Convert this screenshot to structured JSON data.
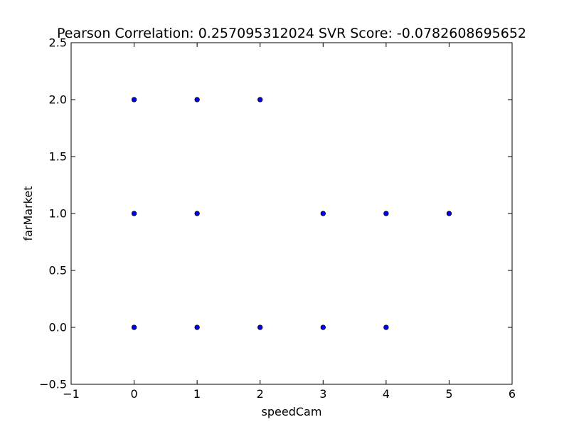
{
  "chart_data": {
    "type": "scatter",
    "title": "Pearson Correlation: 0.257095312024  SVR Score: -0.0782608695652",
    "xlabel": "speedCam",
    "ylabel": "farMarket",
    "xlim": [
      -1,
      6
    ],
    "ylim": [
      -0.5,
      2.5
    ],
    "xticks": [
      "−1",
      "0",
      "1",
      "2",
      "3",
      "4",
      "5",
      "6"
    ],
    "yticks": [
      "−0.5",
      "0.0",
      "0.5",
      "1.0",
      "1.5",
      "2.0",
      "2.5"
    ],
    "grid": false,
    "legend": "none",
    "marker_color": "#0000ff",
    "series": [
      {
        "x": [
          0,
          1,
          2,
          0,
          1,
          3,
          4,
          5,
          0,
          1,
          2,
          3,
          4
        ],
        "y": [
          2,
          2,
          2,
          1,
          1,
          1,
          1,
          1,
          0,
          0,
          0,
          0,
          0
        ]
      }
    ]
  }
}
